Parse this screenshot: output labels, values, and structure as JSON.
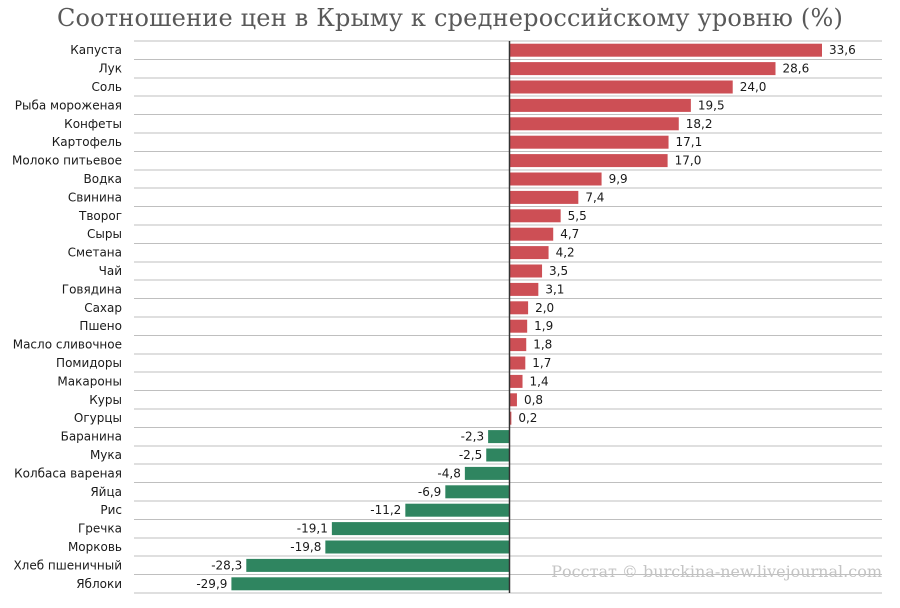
{
  "chart_data": {
    "type": "bar",
    "orientation": "horizontal",
    "title": "Соотношение цен в Крыму к среднероссийскому уровню (%)",
    "source": "Росстат © burckina-new.livejournal.com",
    "categories": [
      "Капуста",
      "Лук",
      "Соль",
      "Рыба мороженая",
      "Конфеты",
      "Картофель",
      "Молоко питьевое",
      "Водка",
      "Свинина",
      "Творог",
      "Сыры",
      "Сметана",
      "Чай",
      "Говядина",
      "Сахар",
      "Пшено",
      "Масло сливочное",
      "Помидоры",
      "Макароны",
      "Куры",
      "Огурцы",
      "Баранина",
      "Мука",
      "Колбаса вареная",
      "Яйца",
      "Рис",
      "Гречка",
      "Морковь",
      "Хлеб пшеничный",
      "Яблоки"
    ],
    "values": [
      33.6,
      28.6,
      24.0,
      19.5,
      18.2,
      17.1,
      17.0,
      9.9,
      7.4,
      5.5,
      4.7,
      4.2,
      3.5,
      3.1,
      2.0,
      1.9,
      1.8,
      1.7,
      1.4,
      0.8,
      0.2,
      -2.3,
      -2.5,
      -4.8,
      -6.9,
      -11.2,
      -19.1,
      -19.8,
      -28.3,
      -29.9
    ],
    "value_labels": [
      "33,6",
      "28,6",
      "24,0",
      "19,5",
      "18,2",
      "17,1",
      "17,0",
      "9,9",
      "7,4",
      "5,5",
      "4,7",
      "4,2",
      "3,5",
      "3,1",
      "2,0",
      "1,9",
      "1,8",
      "1,7",
      "1,4",
      "0,8",
      "0,2",
      "-2,3",
      "-2,5",
      "-4,8",
      "-6,9",
      "-11,2",
      "-19,1",
      "-19,8",
      "-28,3",
      "-29,9"
    ],
    "colors": {
      "positive": "#cd4f55",
      "negative": "#2f8560",
      "axis": "#333333",
      "grid": "#bfbfbf"
    },
    "xlim": [
      -30,
      35
    ],
    "grid": true
  }
}
